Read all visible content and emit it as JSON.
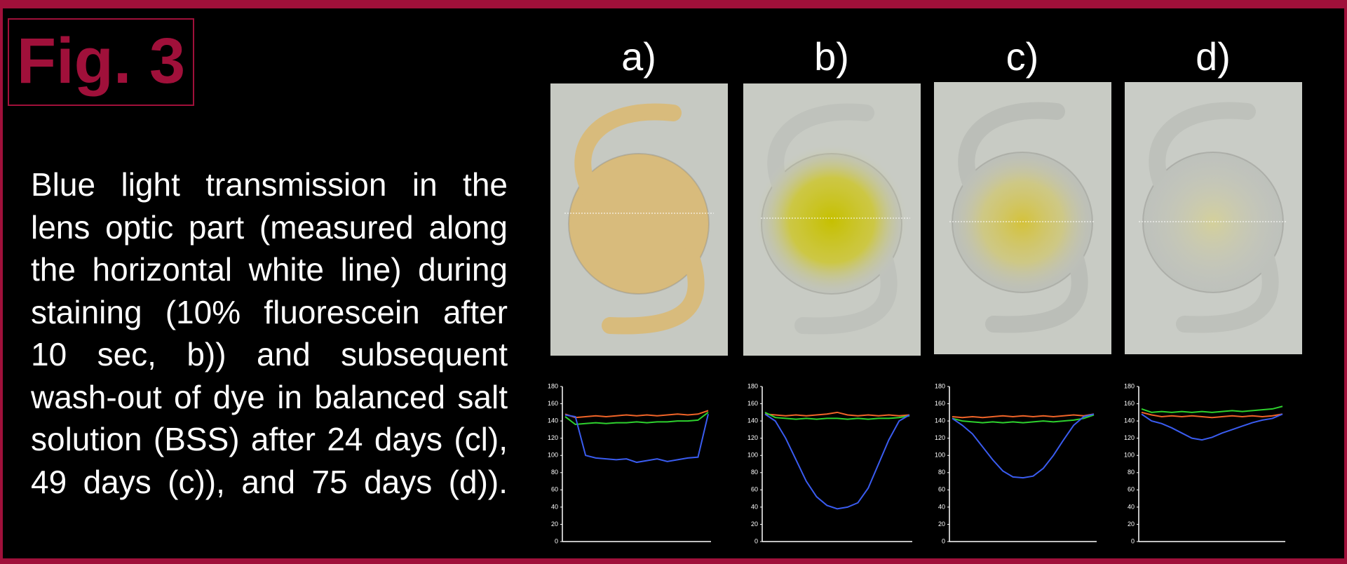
{
  "figure_label": "Fig. 3",
  "caption": "Blue light transmission in the lens optic part (measured along the horizontal white line) during staining (10% fluorescein after 10 sec, b)) and subsequent wash-out of dye in balanced salt solution (BSS) after 24 days (cl), 49 days (c)), and 75 days (d)).",
  "panels": [
    {
      "label": "a)"
    },
    {
      "label": "b)"
    },
    {
      "label": "c)"
    },
    {
      "label": "d)"
    }
  ],
  "chart_data": [
    {
      "type": "line",
      "ylim": [
        0,
        180
      ],
      "yticks": [
        0,
        20,
        40,
        60,
        80,
        100,
        120,
        140,
        160,
        180
      ],
      "series": [
        {
          "color": "#f06428",
          "values": [
            148,
            144,
            145,
            146,
            145,
            146,
            147,
            146,
            147,
            146,
            147,
            148,
            147,
            148,
            152
          ]
        },
        {
          "color": "#2ed12e",
          "values": [
            145,
            136,
            137,
            138,
            137,
            138,
            138,
            139,
            138,
            139,
            139,
            140,
            140,
            141,
            150
          ]
        },
        {
          "color": "#3a5cf0",
          "values": [
            147,
            145,
            100,
            97,
            96,
            95,
            96,
            92,
            94,
            96,
            93,
            95,
            97,
            98,
            148
          ]
        }
      ]
    },
    {
      "type": "line",
      "ylim": [
        0,
        180
      ],
      "yticks": [
        0,
        20,
        40,
        60,
        80,
        100,
        120,
        140,
        160,
        180
      ],
      "series": [
        {
          "color": "#f06428",
          "values": [
            148,
            147,
            146,
            147,
            146,
            147,
            148,
            150,
            147,
            146,
            147,
            146,
            147,
            146,
            147
          ]
        },
        {
          "color": "#2ed12e",
          "values": [
            150,
            144,
            143,
            142,
            143,
            142,
            143,
            143,
            142,
            143,
            142,
            143,
            143,
            144,
            146
          ]
        },
        {
          "color": "#3a5cf0",
          "values": [
            148,
            140,
            120,
            95,
            70,
            52,
            42,
            38,
            40,
            45,
            62,
            90,
            118,
            140,
            147
          ]
        }
      ]
    },
    {
      "type": "line",
      "ylim": [
        0,
        180
      ],
      "yticks": [
        0,
        20,
        40,
        60,
        80,
        100,
        120,
        140,
        160,
        180
      ],
      "series": [
        {
          "color": "#f06428",
          "values": [
            145,
            144,
            145,
            144,
            145,
            146,
            145,
            146,
            145,
            146,
            145,
            146,
            147,
            146,
            148
          ]
        },
        {
          "color": "#2ed12e",
          "values": [
            143,
            140,
            139,
            138,
            139,
            138,
            139,
            138,
            139,
            140,
            139,
            140,
            141,
            143,
            147
          ]
        },
        {
          "color": "#3a5cf0",
          "values": [
            143,
            135,
            125,
            110,
            95,
            82,
            75,
            74,
            76,
            85,
            100,
            118,
            135,
            145,
            148
          ]
        }
      ]
    },
    {
      "type": "line",
      "ylim": [
        0,
        180
      ],
      "yticks": [
        0,
        20,
        40,
        60,
        80,
        100,
        120,
        140,
        160,
        180
      ],
      "series": [
        {
          "color": "#f06428",
          "values": [
            150,
            147,
            145,
            146,
            145,
            146,
            145,
            144,
            145,
            146,
            145,
            146,
            145,
            146,
            148
          ]
        },
        {
          "color": "#2ed12e",
          "values": [
            154,
            150,
            151,
            150,
            151,
            150,
            151,
            150,
            151,
            152,
            151,
            152,
            153,
            154,
            157
          ]
        },
        {
          "color": "#3a5cf0",
          "values": [
            148,
            140,
            137,
            132,
            126,
            120,
            118,
            121,
            126,
            130,
            134,
            138,
            141,
            143,
            148
          ]
        }
      ]
    }
  ]
}
